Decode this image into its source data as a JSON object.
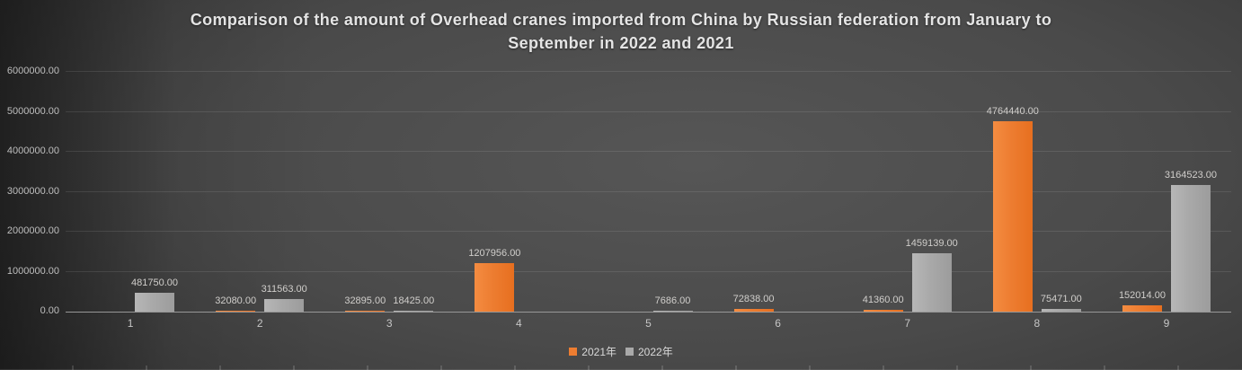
{
  "title": {
    "line1": "Comparison of the amount of Overhead cranes imported from China by Russian federation from January to",
    "line2": "September in 2022 and 2021"
  },
  "chart_data": {
    "type": "bar",
    "title": "Comparison of the amount of Overhead cranes imported from China by Russian federation from January to September in 2022 and 2021",
    "categories": [
      "1",
      "2",
      "3",
      "4",
      "5",
      "6",
      "7",
      "8",
      "9"
    ],
    "series": [
      {
        "name": "2021年",
        "color": "#ED7D31",
        "values": [
          null,
          32080,
          32895,
          1207956,
          null,
          72838,
          41360,
          4764440,
          152014
        ],
        "labels": [
          null,
          "32080.00",
          "32895.00",
          "1207956.00",
          null,
          "72838.00",
          "41360.00",
          "4764440.00",
          "152014.00"
        ]
      },
      {
        "name": "2022年",
        "color": "#A9A9A9",
        "values": [
          481750,
          311563,
          18425,
          null,
          7686,
          null,
          1459139,
          75471,
          3164523
        ],
        "labels": [
          "481750.00",
          "311563.00",
          "18425.00",
          null,
          "7686.00",
          null,
          "1459139.00",
          "75471.00",
          "3164523.00"
        ]
      }
    ],
    "xlabel": "",
    "ylabel": "",
    "ylim": [
      0,
      6000000
    ],
    "ytick_step": 1000000,
    "ytick_labels": [
      "0.00",
      "1000000.00",
      "2000000.00",
      "3000000.00",
      "4000000.00",
      "5000000.00",
      "6000000.00"
    ],
    "grid": true,
    "legend_position": "bottom",
    "background": "dark-gray-gradient"
  },
  "colors": {
    "series_2021": "#ED7D31",
    "series_2022": "#A9A9A9",
    "title_text": "#E4E4E4",
    "axis_text": "#BEBEBE",
    "data_label_text": "#D0CECB",
    "axis_line": "#979797"
  }
}
